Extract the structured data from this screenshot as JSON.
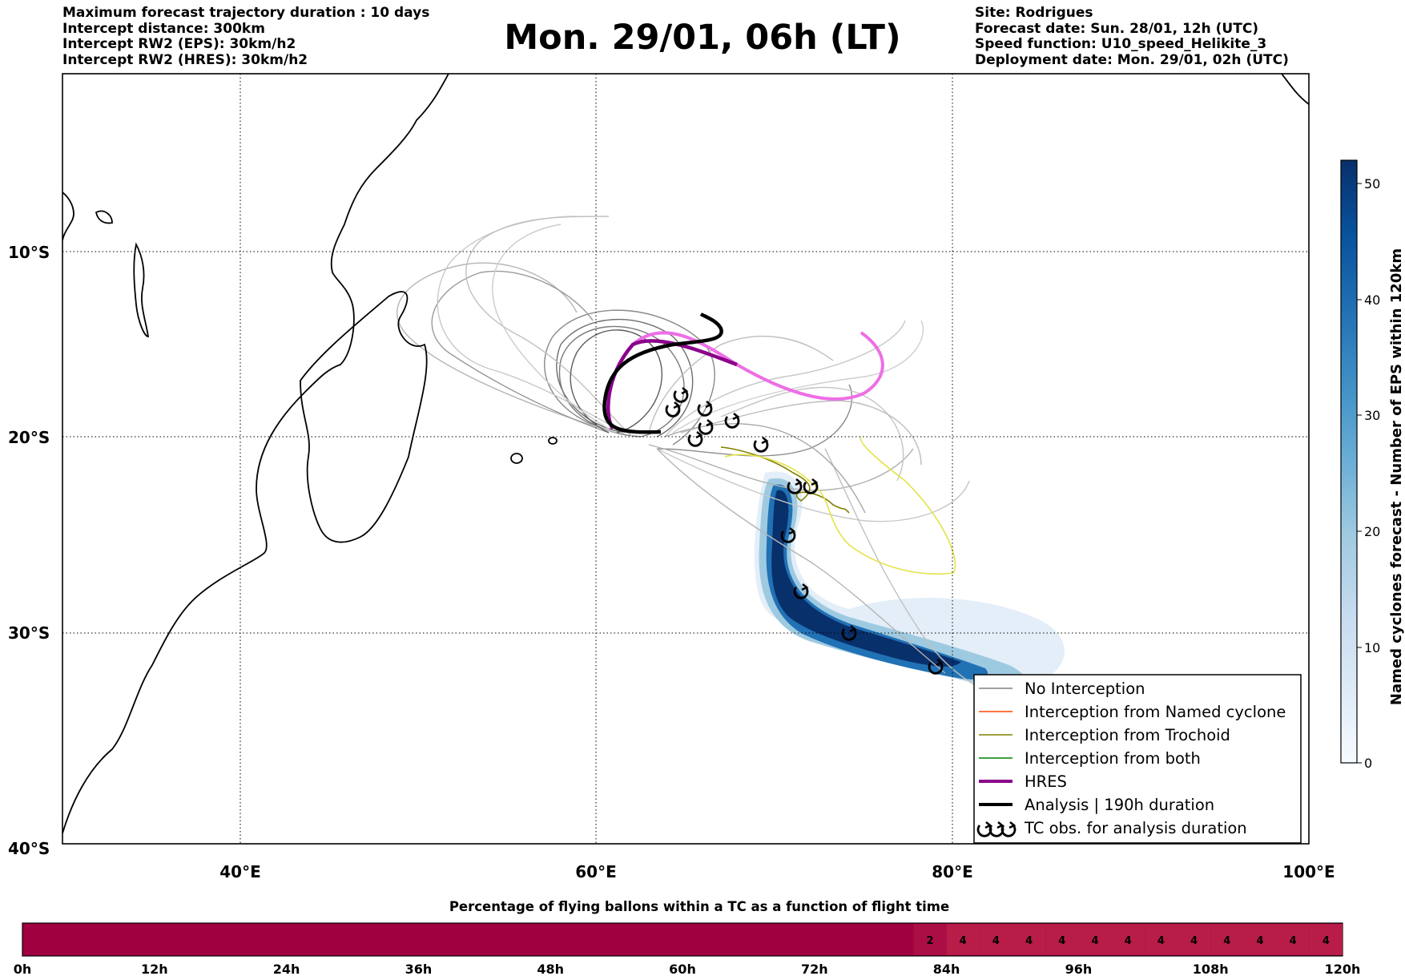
{
  "header": {
    "left": [
      "Maximum forecast trajectory duration : 10 days",
      "Intercept distance: 300km",
      "Intercept RW2 (EPS):  30km/h2",
      "Intercept RW2 (HRES): 30km/h2"
    ],
    "title": "Mon. 29/01, 06h (LT)",
    "right": [
      "Site: Rodrigues",
      "Forecast date: Sun. 28/01, 12h (UTC)",
      "Speed function: U10_speed_Helikite_3",
      "Deployment date: Mon. 29/01, 02h (UTC)"
    ]
  },
  "map": {
    "lat_labels": [
      "10°S",
      "20°S",
      "30°S",
      "40°S"
    ],
    "lon_labels": [
      "40°E",
      "60°E",
      "80°E",
      "100°E"
    ],
    "lon_range": [
      30,
      100
    ],
    "lat_range": [
      -40,
      0
    ],
    "grid": "dotted"
  },
  "legend": {
    "placement": "lower-right",
    "items": [
      {
        "label": "No Interception",
        "color": "#808080",
        "kind": "line-thin"
      },
      {
        "label": "Interception from Named cyclone",
        "color": "#ff4500",
        "kind": "line-thin"
      },
      {
        "label": "Interception from Trochoid",
        "color": "#808000",
        "kind": "line-thin"
      },
      {
        "label": "Interception from both",
        "color": "#008000",
        "kind": "line-thin"
      },
      {
        "label": "HRES",
        "color": "#8b008b",
        "kind": "line-thick"
      },
      {
        "label": "Analysis | 190h duration",
        "color": "#000000",
        "kind": "line-thick"
      },
      {
        "label": "TC obs. for analysis duration",
        "color": "#000000",
        "kind": "tc-symbol"
      }
    ]
  },
  "colorbar": {
    "label": "Named cyclones forecast - Number of EPS within 120km",
    "ticks": [
      "0",
      "10",
      "20",
      "30",
      "40",
      "50"
    ],
    "range": [
      0,
      52
    ],
    "colors": [
      "#f7fbff",
      "#deebf7",
      "#c6dbef",
      "#9ecae1",
      "#6baed6",
      "#4292c6",
      "#2171b5",
      "#08519c",
      "#08306b"
    ]
  },
  "time_bar": {
    "title": "Percentage of flying ballons within a TC as a function of flight time",
    "ticks": [
      "0h",
      "12h",
      "24h",
      "36h",
      "48h",
      "60h",
      "72h",
      "84h",
      "96h",
      "108h",
      "120h"
    ],
    "cells": [
      "2",
      "4",
      "4",
      "4",
      "4",
      "4",
      "4",
      "4",
      "4",
      "4",
      "4",
      "4",
      "4"
    ],
    "base_color": "#a00040",
    "cell_color": "#b81c48"
  },
  "chart_data": {
    "type": "map",
    "tc_observations": [
      {
        "lon": 64.5,
        "lat": -18.8
      },
      {
        "lon": 64.8,
        "lat": -18.1
      },
      {
        "lon": 66.2,
        "lat": -18.8
      },
      {
        "lon": 66.2,
        "lat": -19.7
      },
      {
        "lon": 65.6,
        "lat": -20.3
      },
      {
        "lon": 67.7,
        "lat": -19.4
      },
      {
        "lon": 69.3,
        "lat": -20.6
      },
      {
        "lon": 71.2,
        "lat": -22.8
      },
      {
        "lon": 72.0,
        "lat": -22.8
      },
      {
        "lon": 71.9,
        "lat": -22.9
      },
      {
        "lon": 70.8,
        "lat": -25.3
      },
      {
        "lon": 71.5,
        "lat": -27.9
      },
      {
        "lon": 74.1,
        "lat": -30.1
      },
      {
        "lon": 79.0,
        "lat": -31.8
      }
    ]
  }
}
